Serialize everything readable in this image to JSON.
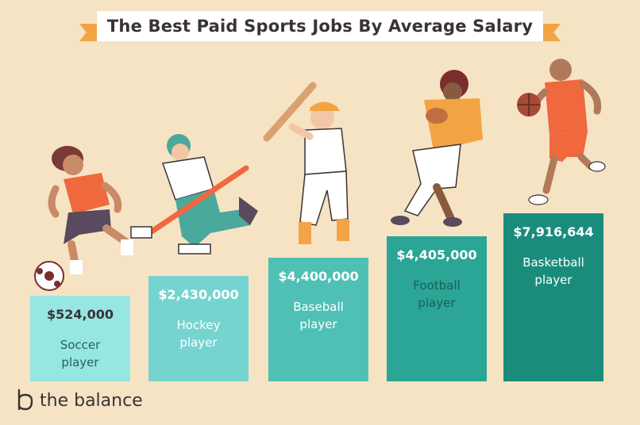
{
  "title": "The Best Paid Sports Jobs By Average Salary",
  "brand": "the balance",
  "colors": {
    "background": "#f6e3c4",
    "banner_ribbon": "#f2a444",
    "bars": [
      "#96e6e2",
      "#76d4d0",
      "#4fc0b6",
      "#2aa596",
      "#1a8c7c"
    ]
  },
  "chart_data": {
    "type": "bar",
    "title": "The Best Paid Sports Jobs By Average Salary",
    "categories": [
      "Soccer player",
      "Hockey player",
      "Baseball player",
      "Football player",
      "Basketball player"
    ],
    "values": [
      524000,
      2430000,
      4400000,
      4405000,
      7916644
    ],
    "value_labels": [
      "$524,000",
      "$2,430,000",
      "$4,400,000",
      "$4,405,000",
      "$7,916,644"
    ],
    "label_lines": [
      [
        "Soccer",
        "player"
      ],
      [
        "Hockey",
        "player"
      ],
      [
        "Baseball",
        "player"
      ],
      [
        "Football",
        "player"
      ],
      [
        "Basketball",
        "player"
      ]
    ],
    "xlabel": "",
    "ylabel": "",
    "grid": false,
    "legend": "none"
  }
}
